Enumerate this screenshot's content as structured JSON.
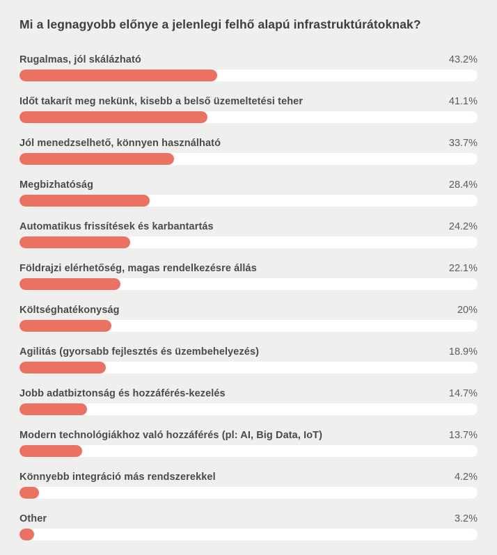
{
  "page": {
    "title": "Mi a legnagyobb előnye a jelenlegi felhő alapú infrastruktúrátoknak?"
  },
  "colors": {
    "background": "#EFEFEE",
    "bar": "#EB7263",
    "track": "#FFFFFF",
    "title": "#3E3E3D",
    "label": "#4A4A48",
    "value": "#5C5C5A"
  },
  "chart_data": {
    "type": "bar",
    "orientation": "horizontal",
    "title": "Mi a legnagyobb előnye a jelenlegi felhő alapú infrastruktúrátoknak?",
    "xlim": [
      0,
      100
    ],
    "grid": false,
    "legend": false,
    "categories": [
      "Rugalmas, jól skálázható",
      "Időt takarít meg nekünk, kisebb a belső üzemeltetési teher",
      "Jól menedzselhető, könnyen használható",
      "Megbizhatóság",
      "Automatikus frissítések és karbantartás",
      "Földrajzi elérhetőség, magas rendelkezésre állás",
      "Költséghatékonyság",
      "Agilitás (gyorsabb fejlesztés és üzembehelyezés)",
      "Jobb adatbiztonság és hozzáférés-kezelés",
      "Modern technológiákhoz való hozzáférés (pl: AI, Big Data, IoT)",
      "Könnyebb integráció más rendszerekkel",
      "Other"
    ],
    "values": [
      43.2,
      41.1,
      33.7,
      28.4,
      24.2,
      22.1,
      20,
      18.9,
      14.7,
      13.7,
      4.2,
      3.2
    ],
    "rows": [
      {
        "label": "Rugalmas, jól skálázható",
        "value": 43.2,
        "display": "43.2%"
      },
      {
        "label": "Időt takarít meg nekünk, kisebb a belső üzemeltetési teher",
        "value": 41.1,
        "display": "41.1%"
      },
      {
        "label": "Jól menedzselhető, könnyen használható",
        "value": 33.7,
        "display": "33.7%"
      },
      {
        "label": "Megbizhatóság",
        "value": 28.4,
        "display": "28.4%"
      },
      {
        "label": "Automatikus frissítések és karbantartás",
        "value": 24.2,
        "display": "24.2%"
      },
      {
        "label": "Földrajzi elérhetőség, magas rendelkezésre állás",
        "value": 22.1,
        "display": "22.1%"
      },
      {
        "label": "Költséghatékonyság",
        "value": 20,
        "display": "20%"
      },
      {
        "label": "Agilitás (gyorsabb fejlesztés és üzembehelyezés)",
        "value": 18.9,
        "display": "18.9%"
      },
      {
        "label": "Jobb adatbiztonság és hozzáférés-kezelés",
        "value": 14.7,
        "display": "14.7%"
      },
      {
        "label": "Modern technológiákhoz való hozzáférés (pl: AI, Big Data, IoT)",
        "value": 13.7,
        "display": "13.7%"
      },
      {
        "label": "Könnyebb integráció más rendszerekkel",
        "value": 4.2,
        "display": "4.2%"
      },
      {
        "label": "Other",
        "value": 3.2,
        "display": "3.2%"
      }
    ]
  }
}
